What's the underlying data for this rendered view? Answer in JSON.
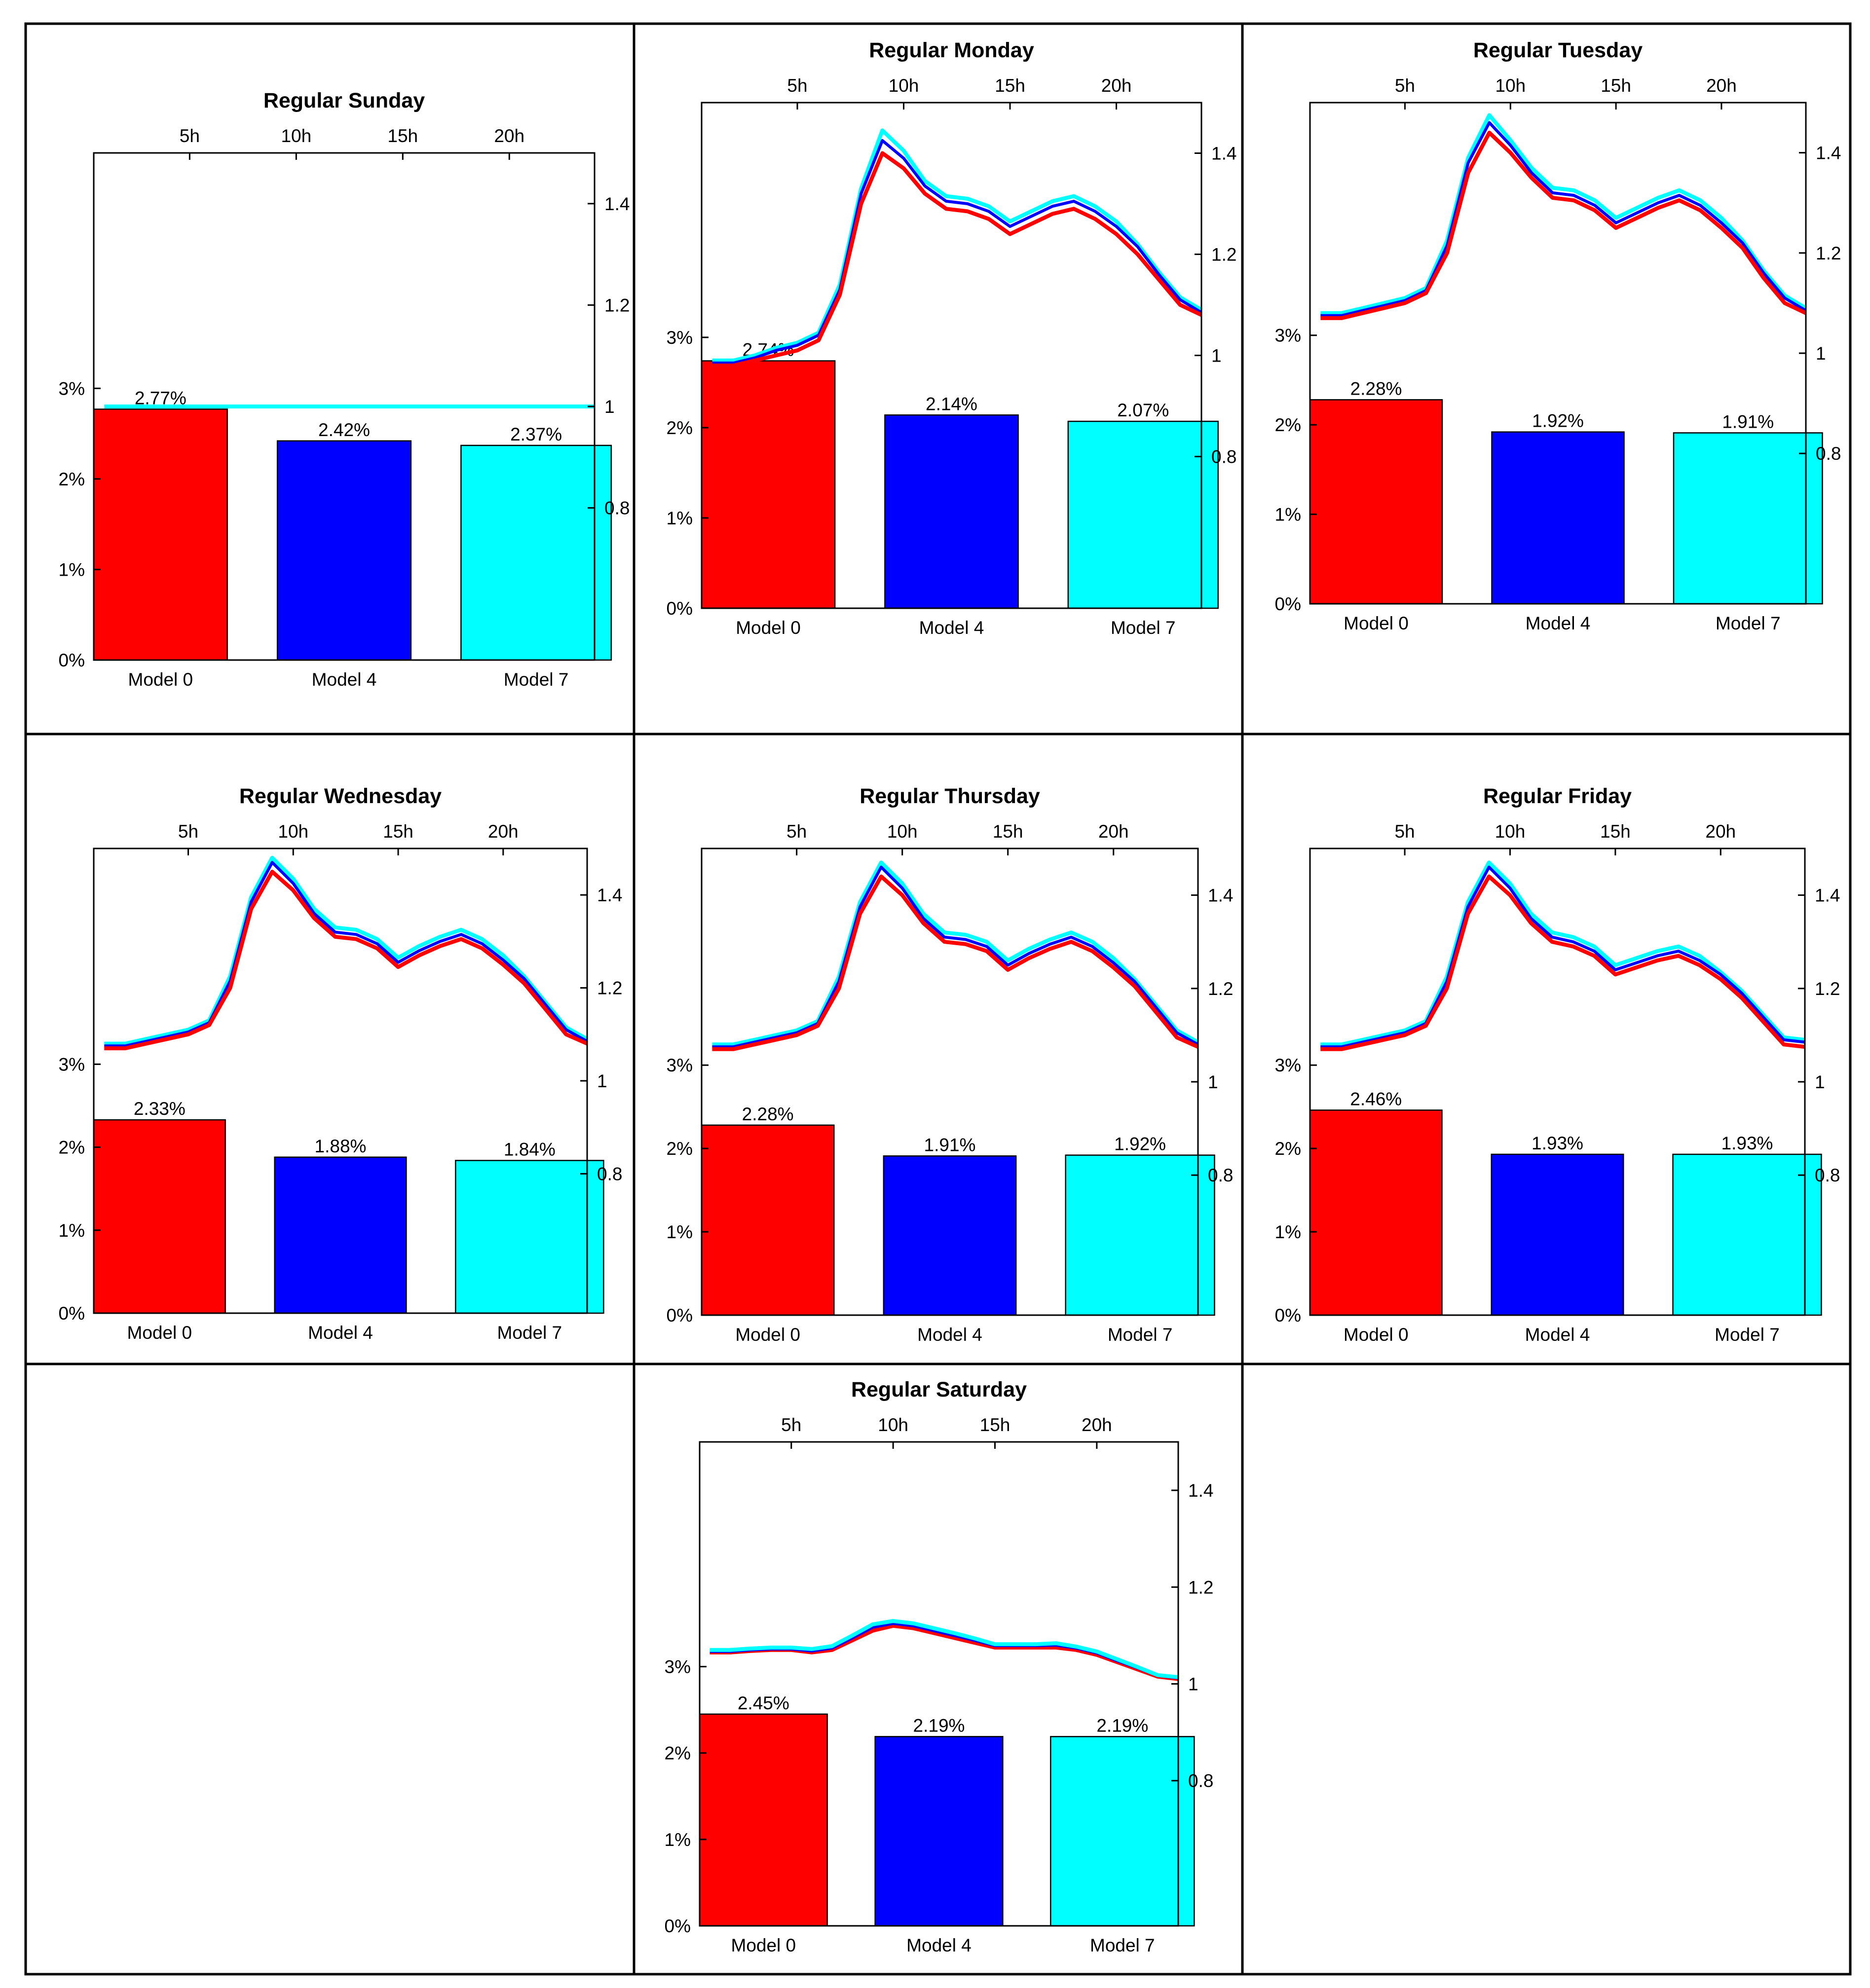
{
  "series_colors": {
    "model0": "#ff0000",
    "model4": "#0000ff",
    "model7": "#00ffff"
  },
  "bar_labels": [
    "Model 0",
    "Model 4",
    "Model 7"
  ],
  "left_axis": {
    "ticks": [
      0,
      1,
      2,
      3
    ],
    "tick_labels": [
      "0%",
      "1%",
      "2%",
      "3%"
    ],
    "ylim": [
      0,
      5.6
    ]
  },
  "right_axis": {
    "ticks": [
      0.8,
      1,
      1.2,
      1.4
    ],
    "tick_labels": [
      "0.8",
      "1",
      "1.2",
      "1.4"
    ],
    "ylim": [
      0.5,
      1.5
    ]
  },
  "top_axis": {
    "ticks": [
      5,
      10,
      15,
      20
    ],
    "tick_labels": [
      "5h",
      "10h",
      "15h",
      "20h"
    ],
    "xlim": [
      0.5,
      24
    ]
  },
  "chart_data": [
    {
      "type": "bar+line",
      "title": "Regular Sunday",
      "categories": [
        "Model 0",
        "Model 4",
        "Model 7"
      ],
      "values": [
        2.77,
        2.42,
        2.37
      ],
      "value_labels": [
        "2.77%",
        "2.42%",
        "2.37%"
      ],
      "hours": [
        1,
        2,
        3,
        4,
        5,
        6,
        7,
        8,
        9,
        10,
        11,
        12,
        13,
        14,
        15,
        16,
        17,
        18,
        19,
        20,
        21,
        22,
        23,
        24
      ],
      "lines": {
        "model0": [
          1,
          1,
          1,
          1,
          1,
          1,
          1,
          1,
          1,
          1,
          1,
          1,
          1,
          1,
          1,
          1,
          1,
          1,
          1,
          1,
          1,
          1,
          1,
          1
        ],
        "model4": [
          1,
          1,
          1,
          1,
          1,
          1,
          1,
          1,
          1,
          1,
          1,
          1,
          1,
          1,
          1,
          1,
          1,
          1,
          1,
          1,
          1,
          1,
          1,
          1
        ],
        "model7": [
          1,
          1,
          1,
          1,
          1,
          1,
          1,
          1,
          1,
          1,
          1,
          1,
          1,
          1,
          1,
          1,
          1,
          1,
          1,
          1,
          1,
          1,
          1,
          1
        ]
      }
    },
    {
      "type": "bar+line",
      "title": "Regular Monday",
      "categories": [
        "Model 0",
        "Model 4",
        "Model 7"
      ],
      "values": [
        2.74,
        2.14,
        2.07
      ],
      "value_labels": [
        "2.74%",
        "2.14%",
        "2.07%"
      ],
      "hours": [
        1,
        2,
        3,
        4,
        5,
        6,
        7,
        8,
        9,
        10,
        11,
        12,
        13,
        14,
        15,
        16,
        17,
        18,
        19,
        20,
        21,
        22,
        23,
        24
      ],
      "lines": {
        "model0": [
          0.98,
          0.98,
          0.99,
          1.0,
          1.01,
          1.03,
          1.12,
          1.3,
          1.4,
          1.37,
          1.32,
          1.29,
          1.285,
          1.27,
          1.24,
          1.26,
          1.28,
          1.29,
          1.27,
          1.24,
          1.2,
          1.15,
          1.1,
          1.08
        ],
        "model4": [
          0.985,
          0.985,
          0.995,
          1.01,
          1.02,
          1.04,
          1.13,
          1.32,
          1.425,
          1.39,
          1.335,
          1.305,
          1.3,
          1.285,
          1.255,
          1.275,
          1.295,
          1.305,
          1.285,
          1.255,
          1.215,
          1.16,
          1.11,
          1.085
        ],
        "model7": [
          0.99,
          0.99,
          1.0,
          1.015,
          1.025,
          1.045,
          1.14,
          1.33,
          1.445,
          1.405,
          1.345,
          1.315,
          1.31,
          1.295,
          1.265,
          1.285,
          1.305,
          1.315,
          1.295,
          1.265,
          1.22,
          1.165,
          1.115,
          1.09
        ]
      }
    },
    {
      "type": "bar+line",
      "title": "Regular Tuesday",
      "categories": [
        "Model 0",
        "Model 4",
        "Model 7"
      ],
      "values": [
        2.28,
        1.92,
        1.91
      ],
      "value_labels": [
        "2.28%",
        "1.92%",
        "1.91%"
      ],
      "hours": [
        1,
        2,
        3,
        4,
        5,
        6,
        7,
        8,
        9,
        10,
        11,
        12,
        13,
        14,
        15,
        16,
        17,
        18,
        19,
        20,
        21,
        22,
        23,
        24
      ],
      "lines": {
        "model0": [
          1.07,
          1.07,
          1.08,
          1.09,
          1.1,
          1.12,
          1.2,
          1.36,
          1.44,
          1.4,
          1.35,
          1.31,
          1.305,
          1.285,
          1.25,
          1.27,
          1.29,
          1.305,
          1.285,
          1.25,
          1.21,
          1.15,
          1.1,
          1.08
        ],
        "model4": [
          1.075,
          1.075,
          1.085,
          1.095,
          1.105,
          1.125,
          1.215,
          1.38,
          1.46,
          1.415,
          1.36,
          1.32,
          1.315,
          1.295,
          1.26,
          1.28,
          1.3,
          1.315,
          1.295,
          1.26,
          1.22,
          1.16,
          1.11,
          1.085
        ],
        "model7": [
          1.08,
          1.08,
          1.09,
          1.1,
          1.11,
          1.13,
          1.225,
          1.39,
          1.475,
          1.425,
          1.37,
          1.33,
          1.325,
          1.305,
          1.27,
          1.29,
          1.31,
          1.325,
          1.305,
          1.27,
          1.225,
          1.165,
          1.115,
          1.09
        ]
      }
    },
    {
      "type": "bar+line",
      "title": "Regular Wednesday",
      "categories": [
        "Model 0",
        "Model 4",
        "Model 7"
      ],
      "values": [
        2.33,
        1.88,
        1.84
      ],
      "value_labels": [
        "2.33%",
        "1.88%",
        "1.84%"
      ],
      "hours": [
        1,
        2,
        3,
        4,
        5,
        6,
        7,
        8,
        9,
        10,
        11,
        12,
        13,
        14,
        15,
        16,
        17,
        18,
        19,
        20,
        21,
        22,
        23,
        24
      ],
      "lines": {
        "model0": [
          1.07,
          1.07,
          1.08,
          1.09,
          1.1,
          1.12,
          1.2,
          1.37,
          1.45,
          1.41,
          1.35,
          1.31,
          1.305,
          1.285,
          1.245,
          1.27,
          1.29,
          1.305,
          1.285,
          1.25,
          1.21,
          1.155,
          1.1,
          1.08
        ],
        "model4": [
          1.075,
          1.075,
          1.085,
          1.095,
          1.105,
          1.125,
          1.215,
          1.385,
          1.47,
          1.425,
          1.36,
          1.32,
          1.315,
          1.295,
          1.255,
          1.28,
          1.3,
          1.315,
          1.295,
          1.26,
          1.22,
          1.165,
          1.11,
          1.085
        ],
        "model7": [
          1.08,
          1.08,
          1.09,
          1.1,
          1.11,
          1.13,
          1.225,
          1.395,
          1.48,
          1.435,
          1.37,
          1.33,
          1.325,
          1.305,
          1.265,
          1.29,
          1.31,
          1.325,
          1.305,
          1.27,
          1.225,
          1.17,
          1.115,
          1.09
        ]
      }
    },
    {
      "type": "bar+line",
      "title": "Regular Thursday",
      "categories": [
        "Model 0",
        "Model 4",
        "Model 7"
      ],
      "values": [
        2.28,
        1.91,
        1.92
      ],
      "value_labels": [
        "2.28%",
        "1.91%",
        "1.92%"
      ],
      "hours": [
        1,
        2,
        3,
        4,
        5,
        6,
        7,
        8,
        9,
        10,
        11,
        12,
        13,
        14,
        15,
        16,
        17,
        18,
        19,
        20,
        21,
        22,
        23,
        24
      ],
      "lines": {
        "model0": [
          1.07,
          1.07,
          1.08,
          1.09,
          1.1,
          1.12,
          1.2,
          1.36,
          1.44,
          1.4,
          1.34,
          1.3,
          1.295,
          1.28,
          1.24,
          1.265,
          1.285,
          1.3,
          1.28,
          1.245,
          1.205,
          1.15,
          1.095,
          1.075
        ],
        "model4": [
          1.075,
          1.075,
          1.085,
          1.095,
          1.105,
          1.125,
          1.215,
          1.375,
          1.46,
          1.415,
          1.35,
          1.31,
          1.305,
          1.29,
          1.25,
          1.275,
          1.295,
          1.31,
          1.29,
          1.255,
          1.215,
          1.16,
          1.105,
          1.08
        ],
        "model7": [
          1.08,
          1.08,
          1.09,
          1.1,
          1.11,
          1.13,
          1.225,
          1.385,
          1.47,
          1.425,
          1.36,
          1.32,
          1.315,
          1.3,
          1.26,
          1.285,
          1.305,
          1.32,
          1.3,
          1.265,
          1.22,
          1.165,
          1.11,
          1.085
        ]
      }
    },
    {
      "type": "bar+line",
      "title": "Regular Friday",
      "categories": [
        "Model 0",
        "Model 4",
        "Model 7"
      ],
      "values": [
        2.46,
        1.93,
        1.93
      ],
      "value_labels": [
        "2.46%",
        "1.93%",
        "1.93%"
      ],
      "hours": [
        1,
        2,
        3,
        4,
        5,
        6,
        7,
        8,
        9,
        10,
        11,
        12,
        13,
        14,
        15,
        16,
        17,
        18,
        19,
        20,
        21,
        22,
        23,
        24
      ],
      "lines": {
        "model0": [
          1.07,
          1.07,
          1.08,
          1.09,
          1.1,
          1.12,
          1.2,
          1.36,
          1.44,
          1.4,
          1.34,
          1.3,
          1.29,
          1.27,
          1.23,
          1.245,
          1.26,
          1.27,
          1.25,
          1.22,
          1.18,
          1.13,
          1.08,
          1.075
        ],
        "model4": [
          1.075,
          1.075,
          1.085,
          1.095,
          1.105,
          1.125,
          1.215,
          1.375,
          1.46,
          1.415,
          1.35,
          1.31,
          1.3,
          1.28,
          1.24,
          1.255,
          1.27,
          1.28,
          1.26,
          1.23,
          1.19,
          1.14,
          1.09,
          1.085
        ],
        "model7": [
          1.08,
          1.08,
          1.09,
          1.1,
          1.11,
          1.13,
          1.225,
          1.385,
          1.47,
          1.425,
          1.36,
          1.32,
          1.31,
          1.29,
          1.25,
          1.265,
          1.28,
          1.29,
          1.27,
          1.235,
          1.195,
          1.145,
          1.095,
          1.09
        ]
      }
    },
    {
      "type": "bar+line",
      "title": "Regular Saturday",
      "categories": [
        "Model 0",
        "Model 4",
        "Model 7"
      ],
      "values": [
        2.45,
        2.19,
        2.19
      ],
      "value_labels": [
        "2.45%",
        "2.19%",
        "2.19%"
      ],
      "hours": [
        1,
        2,
        3,
        4,
        5,
        6,
        7,
        8,
        9,
        10,
        11,
        12,
        13,
        14,
        15,
        16,
        17,
        18,
        19,
        20,
        21,
        22,
        23,
        24
      ],
      "lines": {
        "model0": [
          1.065,
          1.065,
          1.068,
          1.07,
          1.07,
          1.065,
          1.07,
          1.09,
          1.11,
          1.12,
          1.115,
          1.105,
          1.095,
          1.085,
          1.075,
          1.075,
          1.075,
          1.075,
          1.07,
          1.06,
          1.045,
          1.03,
          1.015,
          1.01
        ],
        "model4": [
          1.067,
          1.067,
          1.07,
          1.072,
          1.072,
          1.068,
          1.074,
          1.095,
          1.117,
          1.125,
          1.12,
          1.11,
          1.1,
          1.09,
          1.079,
          1.079,
          1.079,
          1.08,
          1.074,
          1.064,
          1.048,
          1.033,
          1.017,
          1.012
        ],
        "model7": [
          1.07,
          1.07,
          1.073,
          1.075,
          1.075,
          1.072,
          1.078,
          1.1,
          1.123,
          1.13,
          1.125,
          1.115,
          1.105,
          1.094,
          1.082,
          1.082,
          1.082,
          1.084,
          1.077,
          1.067,
          1.051,
          1.035,
          1.018,
          1.014
        ]
      }
    }
  ]
}
